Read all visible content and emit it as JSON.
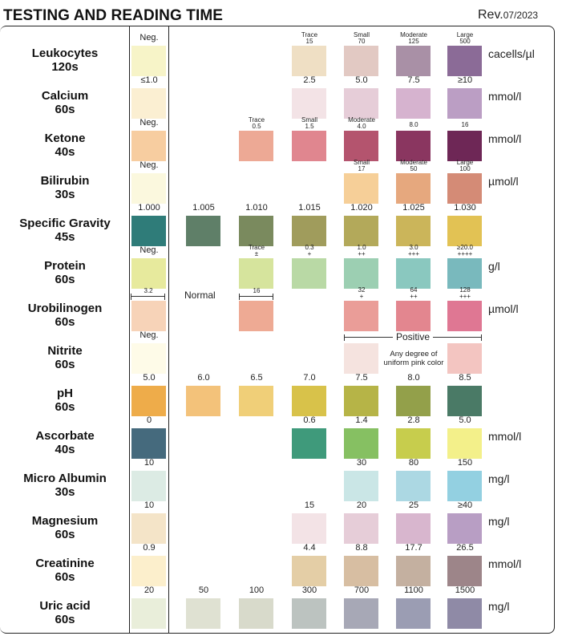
{
  "header": {
    "title": "TESTING AND READING TIME",
    "rev_prefix": "Rev.",
    "rev_date": "07/2023"
  },
  "annotations": {
    "normal": "Normal",
    "positive": "Positive",
    "nitrite_note": "Any degree of uniform pink color",
    "urobilinogen_low": "3.2",
    "urobilinogen_normal_end": "16"
  },
  "rows": [
    {
      "name": "Leukocytes",
      "time": "120s",
      "unit": "cacells/µl",
      "cells": [
        {
          "col": 0,
          "label": "Neg.",
          "color": "#f7f4c8"
        },
        {
          "col": 3,
          "label": "Trace",
          "sub": "15",
          "color": "#efdfc4"
        },
        {
          "col": 4,
          "label": "Small",
          "sub": "70",
          "color": "#e2c9c3"
        },
        {
          "col": 5,
          "label": "Moderate",
          "sub": "125",
          "color": "#a990a6"
        },
        {
          "col": 6,
          "label": "Large",
          "sub": "500",
          "color": "#8b6b97"
        }
      ]
    },
    {
      "name": "Calcium",
      "time": "60s",
      "unit": "mmol/l",
      "cells": [
        {
          "col": 0,
          "label": "≤1.0",
          "color": "#fbefd2"
        },
        {
          "col": 3,
          "label": "2.5",
          "color": "#f3e3e6"
        },
        {
          "col": 4,
          "label": "5.0",
          "color": "#e6cdd8"
        },
        {
          "col": 5,
          "label": "7.5",
          "color": "#d6b3cf"
        },
        {
          "col": 6,
          "label": "≥10",
          "color": "#bb9ec4"
        }
      ]
    },
    {
      "name": "Ketone",
      "time": "40s",
      "unit": "mmol/l",
      "cells": [
        {
          "col": 0,
          "label": "Neg.",
          "color": "#f7cda0"
        },
        {
          "col": 2,
          "label": "Trace",
          "sub": "0.5",
          "small": true,
          "color": "#eda995"
        },
        {
          "col": 3,
          "label": "Small",
          "sub": "1.5",
          "small": true,
          "color": "#e0868f"
        },
        {
          "col": 4,
          "label": "Moderate",
          "sub": "4.0",
          "small": true,
          "color": "#b4546e"
        },
        {
          "col": 5,
          "label": "8.0",
          "small": true,
          "color": "#8a3660"
        },
        {
          "col": 6,
          "label": "16",
          "small": true,
          "color": "#6e2756"
        }
      ]
    },
    {
      "name": "Bilirubin",
      "time": "30s",
      "unit": "µmol/l",
      "cells": [
        {
          "col": 0,
          "label": "Neg.",
          "color": "#fbf8de"
        },
        {
          "col": 4,
          "label": "Small",
          "sub": "17",
          "small": true,
          "color": "#f6cf98"
        },
        {
          "col": 5,
          "label": "Moderate",
          "sub": "50",
          "small": true,
          "color": "#e6a87e"
        },
        {
          "col": 6,
          "label": "Large",
          "sub": "100",
          "small": true,
          "color": "#d48b76"
        }
      ]
    },
    {
      "name": "Specific Gravity",
      "time": "45s",
      "unit": "",
      "cells": [
        {
          "col": 0,
          "label": "1.000",
          "color": "#2f7c79"
        },
        {
          "col": 1,
          "label": "1.005",
          "color": "#5f7f68"
        },
        {
          "col": 2,
          "label": "1.010",
          "color": "#7a8a5e"
        },
        {
          "col": 3,
          "label": "1.015",
          "color": "#a09c5c"
        },
        {
          "col": 4,
          "label": "1.020",
          "color": "#b3a95a"
        },
        {
          "col": 5,
          "label": "1.025",
          "color": "#cbb55a"
        },
        {
          "col": 6,
          "label": "1.030",
          "color": "#e2c254"
        }
      ]
    },
    {
      "name": "Protein",
      "time": "60s",
      "unit": "g/l",
      "cells": [
        {
          "col": 0,
          "label": "Neg.",
          "color": "#e7ea9d"
        },
        {
          "col": 2,
          "label": "Trace",
          "sub": "±",
          "small": true,
          "color": "#d6e49d"
        },
        {
          "col": 3,
          "label": "0.3",
          "sub": "+",
          "small": true,
          "color": "#b9d9a5"
        },
        {
          "col": 4,
          "label": "1.0",
          "sub": "++",
          "small": true,
          "color": "#9ccfb2"
        },
        {
          "col": 5,
          "label": "3.0",
          "sub": "+++",
          "small": true,
          "color": "#8ac8bf"
        },
        {
          "col": 6,
          "label": "≥20.0",
          "sub": "++++",
          "small": true,
          "color": "#79b9bd"
        }
      ]
    },
    {
      "name": "Urobilinogen",
      "time": "60s",
      "unit": "µmol/l",
      "cells": [
        {
          "col": 0,
          "label": "",
          "color": "#f7d3b8"
        },
        {
          "col": 2,
          "label": "",
          "color": "#eeaa94"
        },
        {
          "col": 4,
          "label": "32",
          "sub": "+",
          "small": true,
          "color": "#ea9d98"
        },
        {
          "col": 5,
          "label": "64",
          "sub": "++",
          "small": true,
          "color": "#e3868f"
        },
        {
          "col": 6,
          "label": "128",
          "sub": "+++",
          "small": true,
          "color": "#df7793"
        }
      ]
    },
    {
      "name": "Nitrite",
      "time": "60s",
      "unit": "",
      "cells": [
        {
          "col": 0,
          "label": "Neg.",
          "color": "#fefbe8"
        },
        {
          "col": 4,
          "label": "",
          "color": "#f5e3df"
        },
        {
          "col": 6,
          "label": "",
          "color": "#f3c5c1"
        }
      ]
    },
    {
      "name": "pH",
      "time": "60s",
      "unit": "",
      "cells": [
        {
          "col": 0,
          "label": "5.0",
          "color": "#eeac4a"
        },
        {
          "col": 1,
          "label": "6.0",
          "color": "#f3c27a"
        },
        {
          "col": 2,
          "label": "6.5",
          "color": "#f0cf78"
        },
        {
          "col": 3,
          "label": "7.0",
          "color": "#d8c24a"
        },
        {
          "col": 4,
          "label": "7.5",
          "color": "#b6b447"
        },
        {
          "col": 5,
          "label": "8.0",
          "color": "#93a04a"
        },
        {
          "col": 6,
          "label": "8.5",
          "color": "#4a7a66"
        }
      ]
    },
    {
      "name": "Ascorbate",
      "time": "40s",
      "unit": "mmol/l",
      "cells": [
        {
          "col": 0,
          "label": "0",
          "color": "#456a7d"
        },
        {
          "col": 3,
          "label": "0.6",
          "color": "#3f9a7b"
        },
        {
          "col": 4,
          "label": "1.4",
          "color": "#86c062"
        },
        {
          "col": 5,
          "label": "2.8",
          "color": "#c7cd4d"
        },
        {
          "col": 6,
          "label": "5.0",
          "color": "#f3f08a"
        }
      ]
    },
    {
      "name": "Micro Albumin",
      "time": "30s",
      "unit": "mg/l",
      "cells": [
        {
          "col": 0,
          "label": "10",
          "color": "#dcebe4"
        },
        {
          "col": 4,
          "label": "30",
          "color": "#cae6e6"
        },
        {
          "col": 5,
          "label": "80",
          "color": "#acd8e3"
        },
        {
          "col": 6,
          "label": "150",
          "color": "#93d0e1"
        }
      ]
    },
    {
      "name": "Magnesium",
      "time": "60s",
      "unit": "mg/l",
      "cells": [
        {
          "col": 0,
          "label": "10",
          "color": "#f4e4c8"
        },
        {
          "col": 3,
          "label": "15",
          "color": "#f3e3e6"
        },
        {
          "col": 4,
          "label": "20",
          "color": "#e6cdd8"
        },
        {
          "col": 5,
          "label": "25",
          "color": "#d8b6ce"
        },
        {
          "col": 6,
          "label": "≥40",
          "color": "#b89ec4"
        }
      ]
    },
    {
      "name": "Creatinine",
      "time": "60s",
      "unit": "mmol/l",
      "cells": [
        {
          "col": 0,
          "label": "0.9",
          "color": "#fcefcc"
        },
        {
          "col": 3,
          "label": "4.4",
          "color": "#e4cea6"
        },
        {
          "col": 4,
          "label": "8.8",
          "color": "#d7bea2"
        },
        {
          "col": 5,
          "label": "17.7",
          "color": "#c4b0a0"
        },
        {
          "col": 6,
          "label": "26.5",
          "color": "#9d8589"
        }
      ]
    },
    {
      "name": "Uric acid",
      "time": "60s",
      "unit": "mg/l",
      "cells": [
        {
          "col": 0,
          "label": "20",
          "color": "#e9eeda"
        },
        {
          "col": 1,
          "label": "50",
          "color": "#dfe1d2"
        },
        {
          "col": 2,
          "label": "100",
          "color": "#d8dacb"
        },
        {
          "col": 3,
          "label": "300",
          "color": "#bcc3c0"
        },
        {
          "col": 4,
          "label": "700",
          "color": "#a7a8b6"
        },
        {
          "col": 5,
          "label": "1100",
          "color": "#9b9db3"
        },
        {
          "col": 6,
          "label": "1500",
          "color": "#8f8aa6"
        }
      ]
    }
  ]
}
